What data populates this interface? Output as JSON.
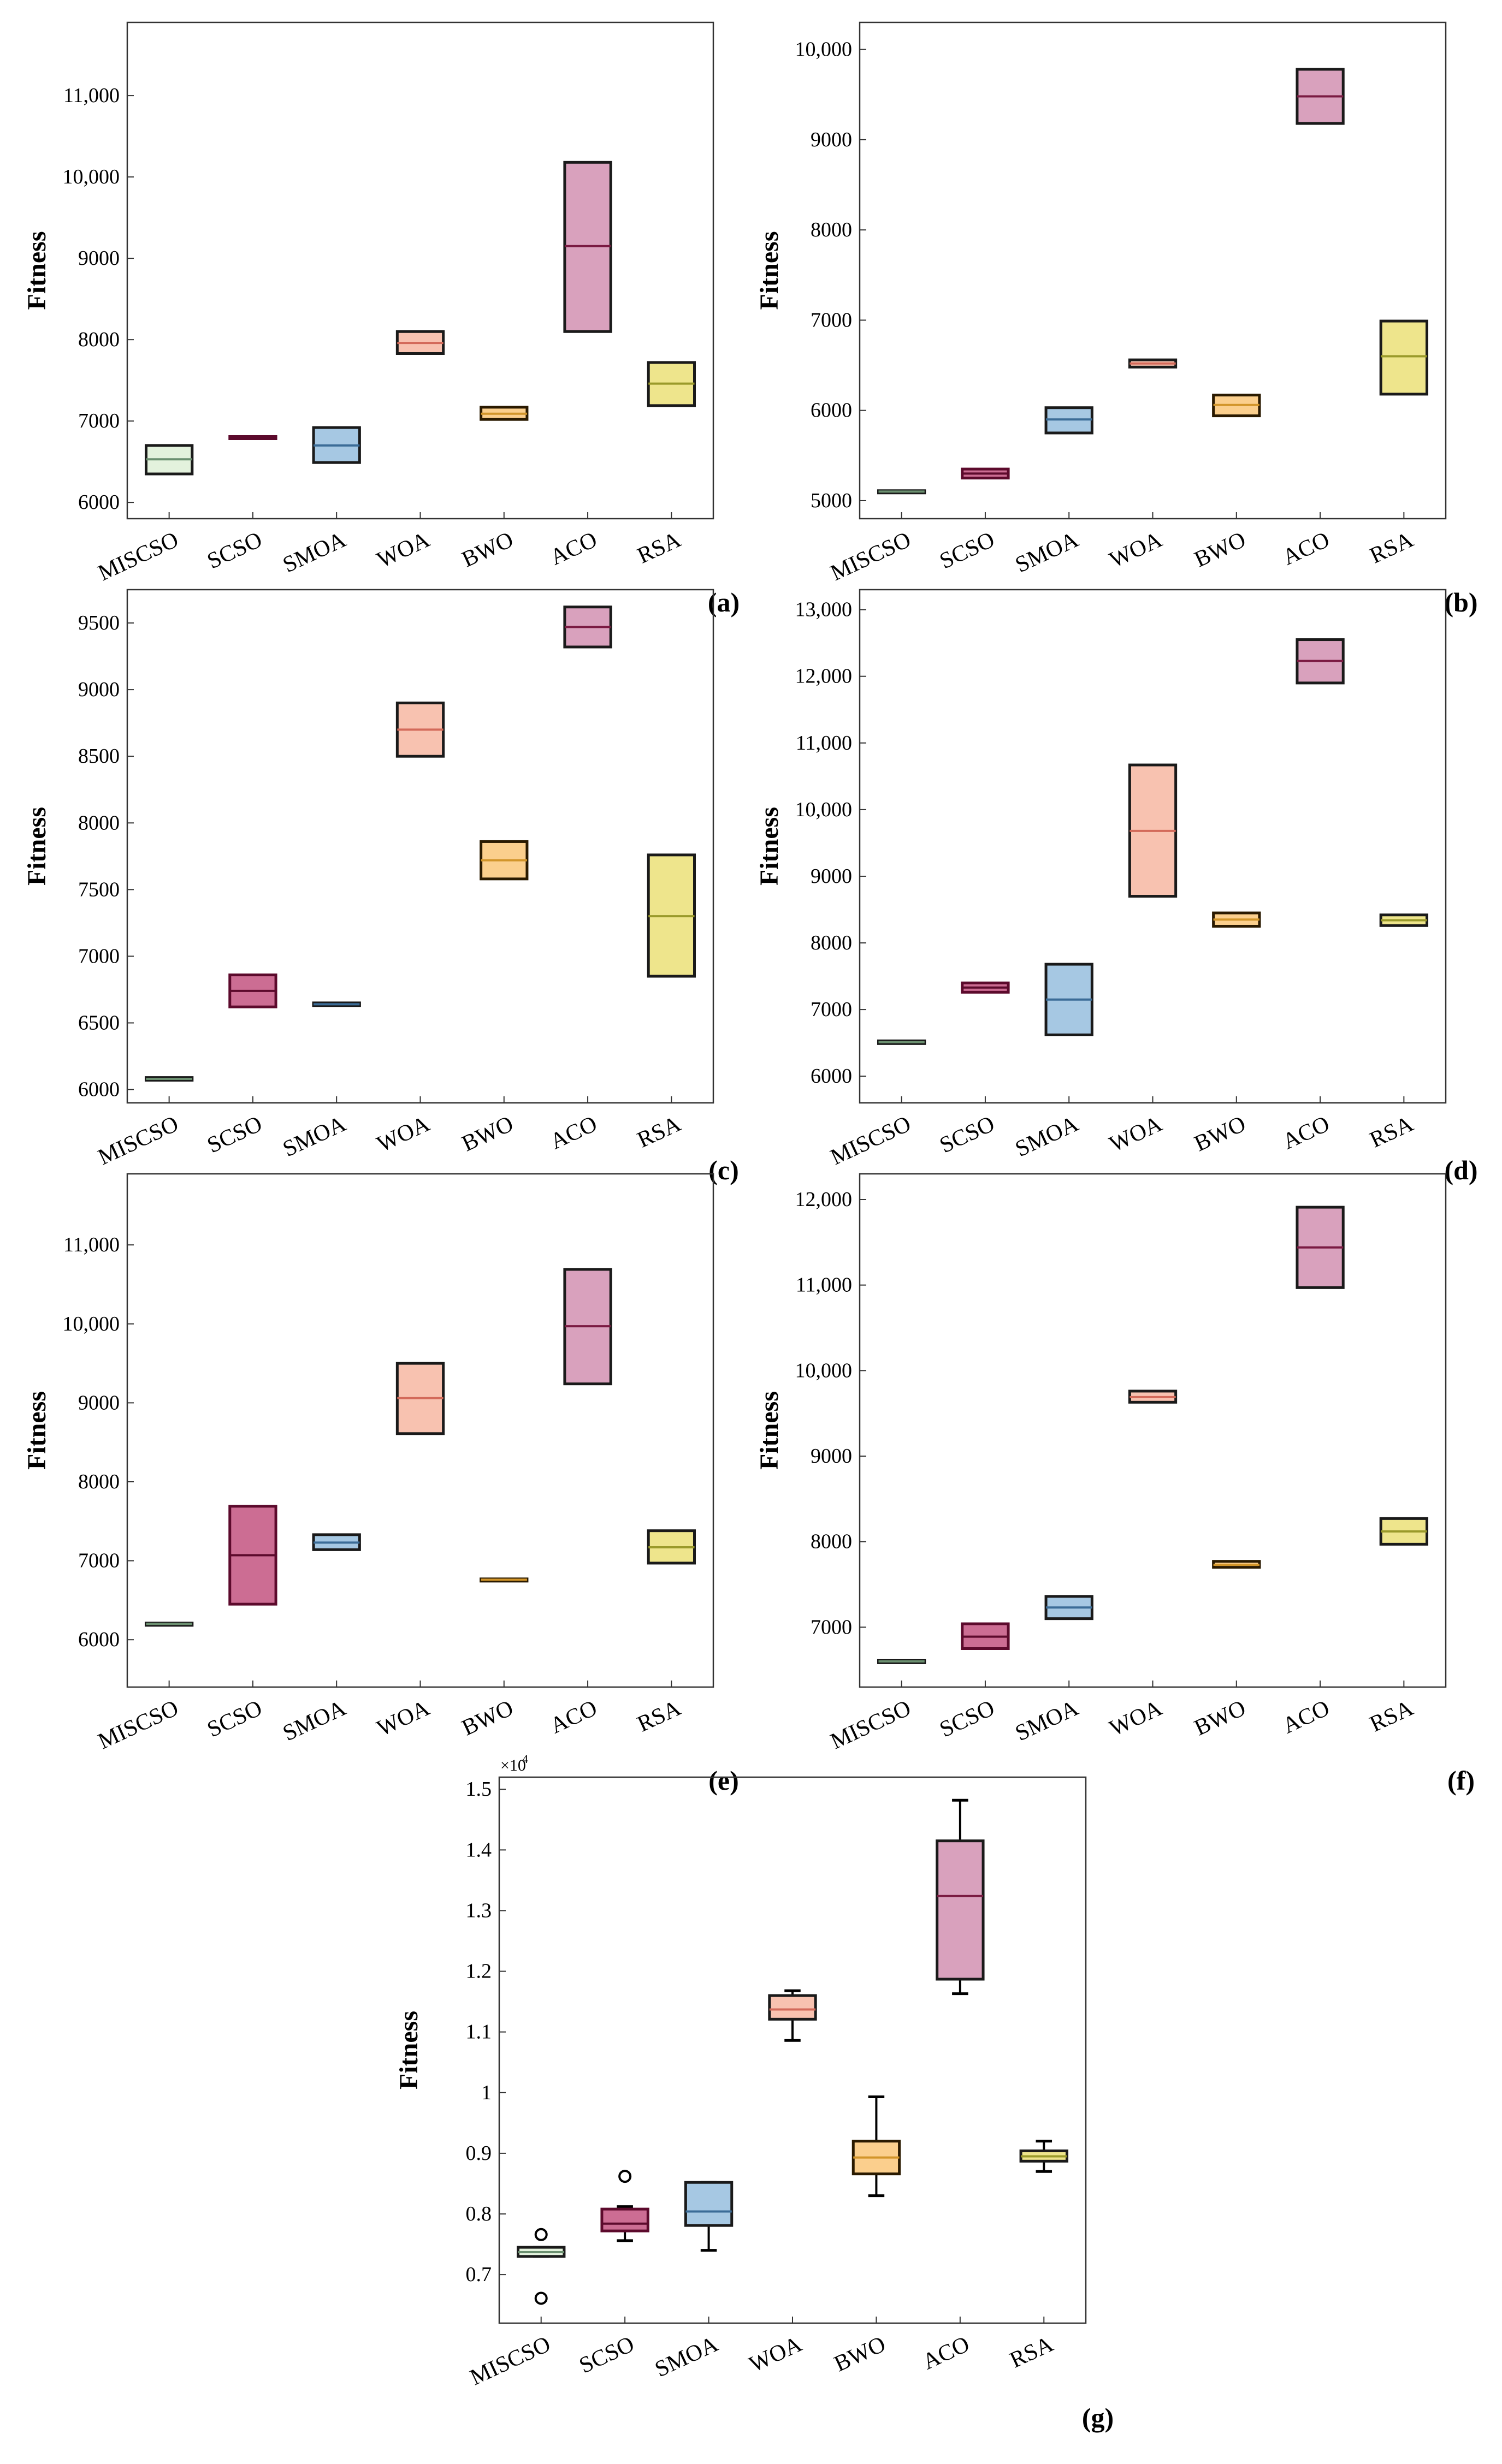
{
  "chart_data": [
    {
      "type": "box",
      "panel_label": "(a)",
      "ylabel": "Fitness",
      "ylim": [
        5800,
        11900
      ],
      "yticks": [
        6000,
        7000,
        8000,
        9000,
        10000,
        11000
      ],
      "ytick_labels": [
        "6000",
        "7000",
        "8000",
        "9000",
        "10,000",
        "11,000"
      ],
      "exponent_label": "",
      "categories": [
        "MISCSO",
        "SCSO",
        "SMOA",
        "WOA",
        "BWO",
        "ACO",
        "RSA"
      ],
      "boxes": [
        {
          "q1": 6350,
          "median": 6530,
          "q3": 6700
        },
        {
          "q1": 6790,
          "median": 6800,
          "q3": 6810
        },
        {
          "q1": 6490,
          "median": 6700,
          "q3": 6920
        },
        {
          "q1": 7830,
          "median": 7960,
          "q3": 8100
        },
        {
          "q1": 7020,
          "median": 7090,
          "q3": 7170
        },
        {
          "q1": 8100,
          "median": 9150,
          "q3": 10180
        },
        {
          "q1": 7190,
          "median": 7460,
          "q3": 7720
        }
      ],
      "whiskers": [],
      "outliers": []
    },
    {
      "type": "box",
      "panel_label": "(b)",
      "ylabel": "Fitness",
      "ylim": [
        4800,
        10300
      ],
      "yticks": [
        5000,
        6000,
        7000,
        8000,
        9000,
        10000
      ],
      "ytick_labels": [
        "5000",
        "6000",
        "7000",
        "8000",
        "9000",
        "10,000"
      ],
      "exponent_label": "",
      "categories": [
        "MISCSO",
        "SCSO",
        "SMOA",
        "WOA",
        "BWO",
        "ACO",
        "RSA"
      ],
      "boxes": [
        {
          "q1": 5090,
          "median": 5100,
          "q3": 5110
        },
        {
          "q1": 5250,
          "median": 5300,
          "q3": 5350
        },
        {
          "q1": 5750,
          "median": 5900,
          "q3": 6030
        },
        {
          "q1": 6480,
          "median": 6520,
          "q3": 6560
        },
        {
          "q1": 5940,
          "median": 6060,
          "q3": 6170
        },
        {
          "q1": 9180,
          "median": 9480,
          "q3": 9780
        },
        {
          "q1": 6180,
          "median": 6600,
          "q3": 6990
        }
      ],
      "whiskers": [],
      "outliers": []
    },
    {
      "type": "box",
      "panel_label": "(c)",
      "ylabel": "Fitness",
      "ylim": [
        5900,
        9750
      ],
      "yticks": [
        6000,
        6500,
        7000,
        7500,
        8000,
        8500,
        9000,
        9500
      ],
      "ytick_labels": [
        "6000",
        "6500",
        "7000",
        "7500",
        "8000",
        "8500",
        "9000",
        "9500"
      ],
      "exponent_label": "",
      "categories": [
        "MISCSO",
        "SCSO",
        "SMOA",
        "WOA",
        "BWO",
        "ACO",
        "RSA"
      ],
      "boxes": [
        {
          "q1": 6070,
          "median": 6080,
          "q3": 6090
        },
        {
          "q1": 6620,
          "median": 6740,
          "q3": 6860
        },
        {
          "q1": 6630,
          "median": 6640,
          "q3": 6650
        },
        {
          "q1": 8500,
          "median": 8700,
          "q3": 8900
        },
        {
          "q1": 7580,
          "median": 7720,
          "q3": 7860
        },
        {
          "q1": 9320,
          "median": 9470,
          "q3": 9620
        },
        {
          "q1": 6850,
          "median": 7300,
          "q3": 7760
        }
      ],
      "whiskers": [],
      "outliers": []
    },
    {
      "type": "box",
      "panel_label": "(d)",
      "ylabel": "Fitness",
      "ylim": [
        5600,
        13300
      ],
      "yticks": [
        6000,
        7000,
        8000,
        9000,
        10000,
        11000,
        12000,
        13000
      ],
      "ytick_labels": [
        "6000",
        "7000",
        "8000",
        "9000",
        "10,000",
        "11,000",
        "12,000",
        "13,000"
      ],
      "exponent_label": "",
      "categories": [
        "MISCSO",
        "SCSO",
        "SMOA",
        "WOA",
        "BWO",
        "ACO",
        "RSA"
      ],
      "boxes": [
        {
          "q1": 6490,
          "median": 6510,
          "q3": 6530
        },
        {
          "q1": 7260,
          "median": 7330,
          "q3": 7400
        },
        {
          "q1": 6620,
          "median": 7150,
          "q3": 7680
        },
        {
          "q1": 8700,
          "median": 9680,
          "q3": 10670
        },
        {
          "q1": 8250,
          "median": 8350,
          "q3": 8450
        },
        {
          "q1": 11900,
          "median": 12230,
          "q3": 12550
        },
        {
          "q1": 8260,
          "median": 8340,
          "q3": 8420
        }
      ],
      "whiskers": [],
      "outliers": []
    },
    {
      "type": "box",
      "panel_label": "(e)",
      "ylabel": "Fitness",
      "ylim": [
        5400,
        11900
      ],
      "yticks": [
        6000,
        7000,
        8000,
        9000,
        10000,
        11000
      ],
      "ytick_labels": [
        "6000",
        "7000",
        "8000",
        "9000",
        "10,000",
        "11,000"
      ],
      "exponent_label": "",
      "categories": [
        "MISCSO",
        "SCSO",
        "SMOA",
        "WOA",
        "BWO",
        "ACO",
        "RSA"
      ],
      "boxes": [
        {
          "q1": 6190,
          "median": 6200,
          "q3": 6210
        },
        {
          "q1": 6450,
          "median": 7070,
          "q3": 7690
        },
        {
          "q1": 7140,
          "median": 7230,
          "q3": 7330
        },
        {
          "q1": 8610,
          "median": 9060,
          "q3": 9500
        },
        {
          "q1": 6750,
          "median": 6760,
          "q3": 6770
        },
        {
          "q1": 9240,
          "median": 9970,
          "q3": 10690
        },
        {
          "q1": 6970,
          "median": 7170,
          "q3": 7380
        }
      ],
      "whiskers": [],
      "outliers": []
    },
    {
      "type": "box",
      "panel_label": "(f)",
      "ylabel": "Fitness",
      "ylim": [
        6300,
        12300
      ],
      "yticks": [
        7000,
        8000,
        9000,
        10000,
        11000,
        12000
      ],
      "ytick_labels": [
        "7000",
        "8000",
        "9000",
        "10,000",
        "11,000",
        "12,000"
      ],
      "exponent_label": "",
      "categories": [
        "MISCSO",
        "SCSO",
        "SMOA",
        "WOA",
        "BWO",
        "ACO",
        "RSA"
      ],
      "boxes": [
        {
          "q1": 6590,
          "median": 6600,
          "q3": 6610
        },
        {
          "q1": 6750,
          "median": 6890,
          "q3": 7040
        },
        {
          "q1": 7100,
          "median": 7230,
          "q3": 7360
        },
        {
          "q1": 9630,
          "median": 9690,
          "q3": 9760
        },
        {
          "q1": 7700,
          "median": 7730,
          "q3": 7770
        },
        {
          "q1": 10970,
          "median": 11440,
          "q3": 11910
        },
        {
          "q1": 7970,
          "median": 8120,
          "q3": 8270
        }
      ],
      "whiskers": [],
      "outliers": []
    },
    {
      "type": "box",
      "panel_label": "(g)",
      "ylabel": "Fitness",
      "ylim": [
        0.62,
        1.52
      ],
      "yticks": [
        0.7,
        0.8,
        0.9,
        1.0,
        1.1,
        1.2,
        1.3,
        1.4,
        1.5
      ],
      "ytick_labels": [
        "0.7",
        "0.8",
        "0.9",
        "1",
        "1.1",
        "1.2",
        "1.3",
        "1.4",
        "1.5"
      ],
      "exponent_label": "×10",
      "exponent_power": "4",
      "categories": [
        "MISCSO",
        "SCSO",
        "SMOA",
        "WOA",
        "BWO",
        "ACO",
        "RSA"
      ],
      "boxes": [
        {
          "q1": 0.73,
          "median": 0.737,
          "q3": 0.745
        },
        {
          "q1": 0.772,
          "median": 0.784,
          "q3": 0.808
        },
        {
          "q1": 0.781,
          "median": 0.804,
          "q3": 0.852
        },
        {
          "q1": 1.121,
          "median": 1.137,
          "q3": 1.16
        },
        {
          "q1": 0.866,
          "median": 0.893,
          "q3": 0.92
        },
        {
          "q1": 1.187,
          "median": 1.324,
          "q3": 1.415
        },
        {
          "q1": 0.887,
          "median": 0.895,
          "q3": 0.904
        }
      ],
      "whiskers": [
        {
          "low": 0.73,
          "high": 0.745
        },
        {
          "low": 0.756,
          "high": 0.812
        },
        {
          "low": 0.74,
          "high": 0.852
        },
        {
          "low": 1.086,
          "high": 1.168
        },
        {
          "low": 0.83,
          "high": 0.993
        },
        {
          "low": 1.163,
          "high": 1.482
        },
        {
          "low": 0.87,
          "high": 0.92
        }
      ],
      "outliers": [
        [
          0.766,
          0.661
        ],
        [
          0.862
        ],
        [],
        [],
        [],
        [],
        []
      ]
    }
  ],
  "colors": {
    "fills": [
      "#e3f2dd",
      "#cc6d93",
      "#a6c8e3",
      "#f8c2b0",
      "#fbcf8d",
      "#d9a1bd",
      "#eee58c"
    ],
    "edges": [
      "#1a1a1a",
      "#5c0a2c",
      "#1a1a1a",
      "#1a1a1a",
      "#2a1a00",
      "#1a1a1a",
      "#1a1a1a"
    ],
    "medians": [
      "#6b9070",
      "#5c0a2c",
      "#3b6c97",
      "#d36a5a",
      "#d2952a",
      "#7a1a42",
      "#9a9a2a"
    ]
  }
}
